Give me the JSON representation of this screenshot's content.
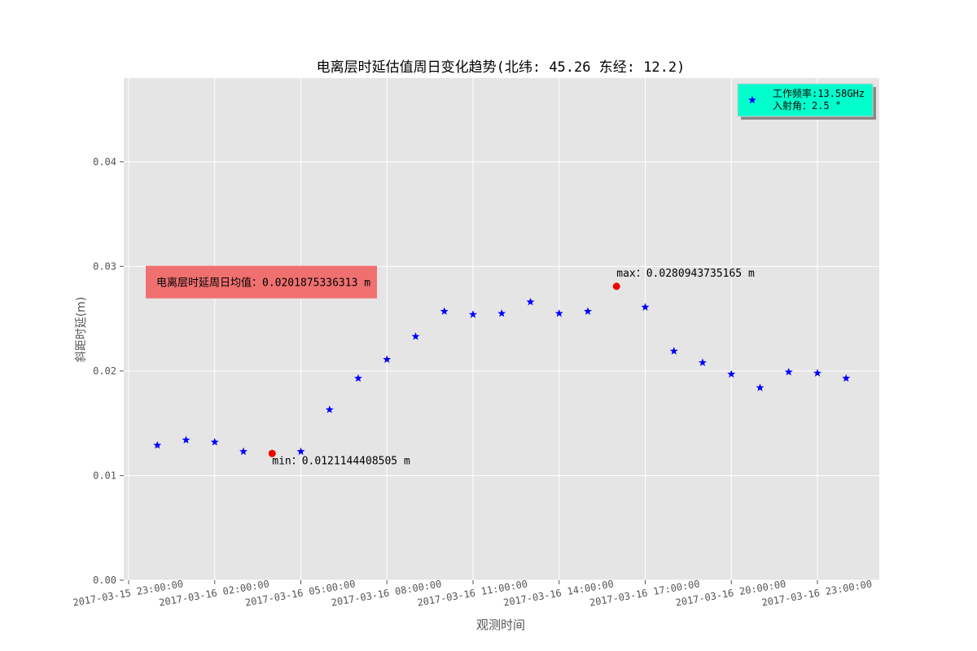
{
  "chart_data": {
    "type": "scatter",
    "title": "电离层时延估值周日变化趋势(北纬: 45.26 东经: 12.2)",
    "xlabel": "观测时间",
    "ylabel": "斜距时延(m)",
    "ylim": [
      0,
      0.048
    ],
    "yticks": [
      "0.00",
      "0.01",
      "0.02",
      "0.03",
      "0.04"
    ],
    "xticks": [
      "2017-03-15 23:00:00",
      "2017-03-16 02:00:00",
      "2017-03-16 05:00:00",
      "2017-03-16 08:00:00",
      "2017-03-16 11:00:00",
      "2017-03-16 14:00:00",
      "2017-03-16 17:00:00",
      "2017-03-16 20:00:00",
      "2017-03-16 23:00:00"
    ],
    "grid": true,
    "legend_position": "top-right",
    "series": [
      {
        "name": "工作频率:13.58GHz\n入射角：2.5 °",
        "marker": "star",
        "color": "#0000ff",
        "x": [
          "2017-03-16 00:00:00",
          "2017-03-16 01:00:00",
          "2017-03-16 02:00:00",
          "2017-03-16 03:00:00",
          "2017-03-16 05:00:00",
          "2017-03-16 06:00:00",
          "2017-03-16 07:00:00",
          "2017-03-16 08:00:00",
          "2017-03-16 09:00:00",
          "2017-03-16 10:00:00",
          "2017-03-16 11:00:00",
          "2017-03-16 12:00:00",
          "2017-03-16 13:00:00",
          "2017-03-16 14:00:00",
          "2017-03-16 15:00:00",
          "2017-03-16 17:00:00",
          "2017-03-16 18:00:00",
          "2017-03-16 19:00:00",
          "2017-03-16 20:00:00",
          "2017-03-16 21:00:00",
          "2017-03-16 22:00:00",
          "2017-03-16 23:00:00",
          "2017-03-17 00:00:00"
        ],
        "values": [
          0.0129,
          0.0134,
          0.0132,
          0.0123,
          0.0123,
          0.0163,
          0.0193,
          0.0211,
          0.0233,
          0.0257,
          0.0254,
          0.0255,
          0.0266,
          0.0255,
          0.0257,
          0.0261,
          0.0219,
          0.0208,
          0.0197,
          0.0184,
          0.0199,
          0.0198,
          0.0193
        ]
      }
    ],
    "extremes": {
      "color": "#ee0000",
      "min": {
        "x": "2017-03-16 04:00:00",
        "value": 0.0121144408505,
        "label": "min：0.0121144408505 m"
      },
      "max": {
        "x": "2017-03-16 16:00:00",
        "value": 0.0280943735165,
        "label": "max：0.0280943735165 m"
      }
    },
    "mean_box": {
      "label": "电离层时延周日均值：0.0201875336313 m",
      "color": "#f07070",
      "y_value": 0.0285
    },
    "legend": {
      "background": "#00ffcc",
      "lines": [
        "工作频率:13.58GHz",
        "入射角：2.5 °"
      ]
    },
    "colors": {
      "plot_background": "#e5e5e5",
      "grid": "#ffffff",
      "axis_text": "#555555"
    }
  }
}
